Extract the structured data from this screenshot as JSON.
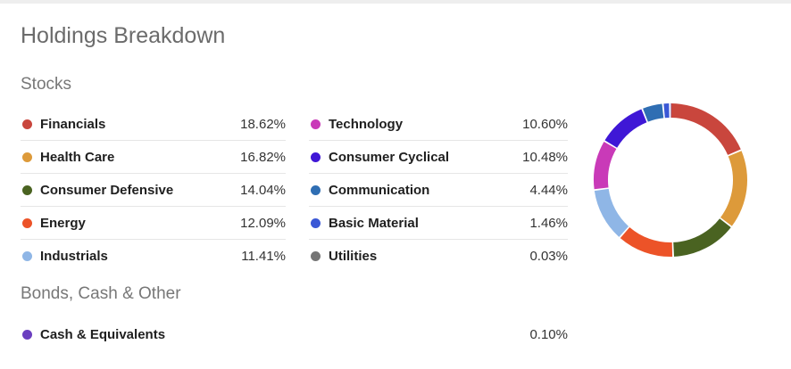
{
  "title": "Holdings Breakdown",
  "stocks_label": "Stocks",
  "bonds_label": "Bonds, Cash & Other",
  "stocks_left": [
    {
      "name": "Financials",
      "pct": "18.62%",
      "color": "#c9463d"
    },
    {
      "name": "Health Care",
      "pct": "16.82%",
      "color": "#dd9a3a"
    },
    {
      "name": "Consumer Defensive",
      "pct": "14.04%",
      "color": "#4a6321"
    },
    {
      "name": "Energy",
      "pct": "12.09%",
      "color": "#ec5328"
    },
    {
      "name": "Industrials",
      "pct": "11.41%",
      "color": "#8fb6e6"
    }
  ],
  "stocks_right": [
    {
      "name": "Technology",
      "pct": "10.60%",
      "color": "#c93ab8"
    },
    {
      "name": "Consumer Cyclical",
      "pct": "10.48%",
      "color": "#3f17d6"
    },
    {
      "name": "Communication",
      "pct": "4.44%",
      "color": "#2f6eb3"
    },
    {
      "name": "Basic Material",
      "pct": "1.46%",
      "color": "#3a58d6"
    },
    {
      "name": "Utilities",
      "pct": "0.03%",
      "color": "#757575"
    }
  ],
  "bonds": [
    {
      "name": "Cash & Equivalents",
      "pct": "0.10%",
      "color": "#6b3fc0"
    }
  ],
  "chart_data": {
    "type": "pie",
    "donut": true,
    "categories": [
      "Financials",
      "Health Care",
      "Consumer Defensive",
      "Energy",
      "Industrials",
      "Technology",
      "Consumer Cyclical",
      "Communication",
      "Basic Material",
      "Utilities",
      "Cash & Equivalents"
    ],
    "values": [
      18.62,
      16.82,
      14.04,
      12.09,
      11.41,
      10.6,
      10.48,
      4.44,
      1.46,
      0.03,
      0.1
    ],
    "colors": [
      "#c9463d",
      "#dd9a3a",
      "#4a6321",
      "#ec5328",
      "#8fb6e6",
      "#c93ab8",
      "#3f17d6",
      "#2f6eb3",
      "#3a58d6",
      "#757575",
      "#6b3fc0"
    ]
  }
}
